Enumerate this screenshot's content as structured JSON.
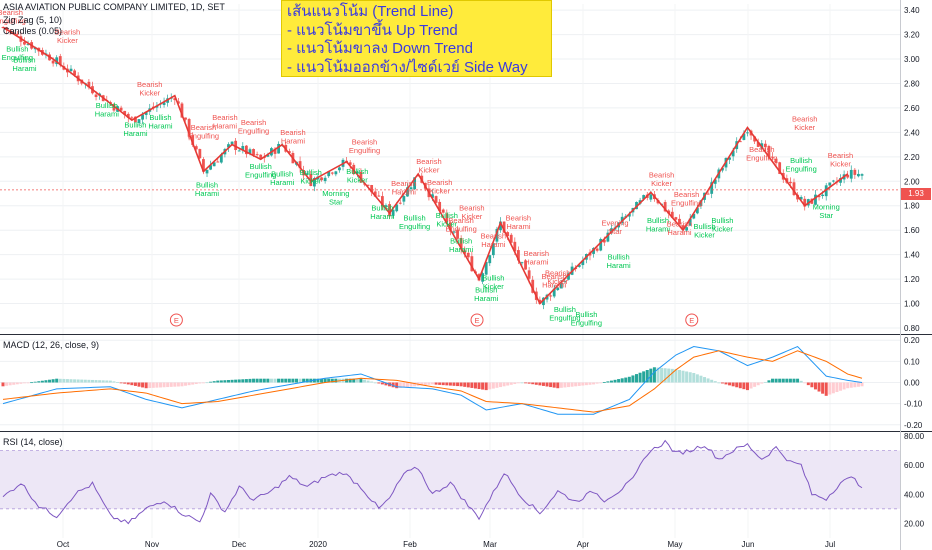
{
  "header": {
    "symbol": "ASIA AVIATION PUBLIC COMPANY LIMITED, 1D, SET",
    "zigzag": "Zig Zag (5, 10)",
    "candles": "Candles (0.05)",
    "macd": "MACD (12, 26, close, 9)",
    "rsi": "RSI (14, close)"
  },
  "note": {
    "line1": "เส้นแนวโน้ม (Trend Line)",
    "line2": "- แนวโน้มขาขึ้น Up Trend",
    "line3": "- แนวโน้มขาลง Down Trend",
    "line4": "- แนวโน้มออกข้าง/ไซด์เวย์ Side Way"
  },
  "last_price": "1.93",
  "colors": {
    "up": "#26a69a",
    "down": "#ef5350",
    "zigzag": "#e53935",
    "bearish_label": "#ef5350",
    "bullish_label": "#00c853",
    "macd_line": "#2196f3",
    "signal_line": "#ff6d00",
    "rsi_line": "#7e57c2",
    "rsi_band": "#ede7f6"
  },
  "chart_data": [
    {
      "type": "candlestick",
      "title": "ASIA AVIATION PUBLIC COMPANY LIMITED, 1D, SET",
      "x_ticks": [
        "Oct",
        "Nov",
        "Dec",
        "2020",
        "Feb",
        "Mar",
        "Apr",
        "May",
        "Jun",
        "Jul"
      ],
      "y_ticks": [
        "3.40",
        "3.20",
        "3.00",
        "2.80",
        "2.60",
        "2.40",
        "2.20",
        "2.00",
        "1.80",
        "1.60",
        "1.40",
        "1.20",
        "1.00",
        "0.80"
      ],
      "ylim": [
        0.8,
        3.45
      ],
      "zigzag": [
        {
          "i": 0,
          "price": 3.26
        },
        {
          "i": 14,
          "price": 3.0
        },
        {
          "i": 36,
          "price": 2.5
        },
        {
          "i": 48,
          "price": 2.7
        },
        {
          "i": 56,
          "price": 2.08
        },
        {
          "i": 64,
          "price": 2.3
        },
        {
          "i": 72,
          "price": 2.18
        },
        {
          "i": 78,
          "price": 2.3
        },
        {
          "i": 86,
          "price": 2.0
        },
        {
          "i": 96,
          "price": 2.16
        },
        {
          "i": 108,
          "price": 1.74
        },
        {
          "i": 116,
          "price": 2.06
        },
        {
          "i": 133,
          "price": 1.2
        },
        {
          "i": 139,
          "price": 1.66
        },
        {
          "i": 150,
          "price": 1.0
        },
        {
          "i": 181,
          "price": 1.91
        },
        {
          "i": 190,
          "price": 1.6
        },
        {
          "i": 208,
          "price": 2.44
        },
        {
          "i": 224,
          "price": 1.8
        },
        {
          "i": 236,
          "price": 2.06
        }
      ],
      "pattern_labels": [
        {
          "text": "Bearish Engulfing",
          "i": 2,
          "price": 3.36,
          "kind": "bearish"
        },
        {
          "text": "Bullish Engulfing",
          "i": 4,
          "price": 3.06,
          "kind": "bullish"
        },
        {
          "text": "Bullish Harami",
          "i": 6,
          "price": 2.97,
          "kind": "bullish"
        },
        {
          "text": "Bearish Kicker",
          "i": 18,
          "price": 3.2,
          "kind": "bearish"
        },
        {
          "text": "Bullish Harami",
          "i": 29,
          "price": 2.6,
          "kind": "bullish"
        },
        {
          "text": "Bullish Harami",
          "i": 37,
          "price": 2.44,
          "kind": "bullish"
        },
        {
          "text": "Bearish Kicker",
          "i": 41,
          "price": 2.77,
          "kind": "bearish"
        },
        {
          "text": "Bullish Harami",
          "i": 44,
          "price": 2.5,
          "kind": "bullish"
        },
        {
          "text": "Bearish Engulfing",
          "i": 56,
          "price": 2.42,
          "kind": "bearish"
        },
        {
          "text": "Bearish Harami",
          "i": 62,
          "price": 2.5,
          "kind": "bearish"
        },
        {
          "text": "Bearish Engulfing",
          "i": 70,
          "price": 2.46,
          "kind": "bearish"
        },
        {
          "text": "Bullish Harami",
          "i": 57,
          "price": 1.95,
          "kind": "bullish"
        },
        {
          "text": "Bullish Engulfing",
          "i": 72,
          "price": 2.1,
          "kind": "bullish"
        },
        {
          "text": "Bearish Harami",
          "i": 81,
          "price": 2.38,
          "kind": "bearish"
        },
        {
          "text": "Bullish Harami",
          "i": 78,
          "price": 2.04,
          "kind": "bullish"
        },
        {
          "text": "Bullish Kicker",
          "i": 86,
          "price": 2.05,
          "kind": "bullish"
        },
        {
          "text": "Bearish Engulfing",
          "i": 101,
          "price": 2.3,
          "kind": "bearish"
        },
        {
          "text": "Bullish Kicker",
          "i": 99,
          "price": 2.06,
          "kind": "bullish"
        },
        {
          "text": "Morning Star",
          "i": 93,
          "price": 1.88,
          "kind": "bullish"
        },
        {
          "text": "Bearish Harami",
          "i": 112,
          "price": 1.96,
          "kind": "bearish"
        },
        {
          "text": "Bearish Kicker",
          "i": 119,
          "price": 2.14,
          "kind": "bearish"
        },
        {
          "text": "Bullish Harami",
          "i": 106,
          "price": 1.76,
          "kind": "bullish"
        },
        {
          "text": "Bullish Engulfing",
          "i": 115,
          "price": 1.68,
          "kind": "bullish"
        },
        {
          "text": "Bearish Kicker",
          "i": 122,
          "price": 1.97,
          "kind": "bearish"
        },
        {
          "text": "Bullish Kicker",
          "i": 124,
          "price": 1.7,
          "kind": "bullish"
        },
        {
          "text": "Bearish Kicker",
          "i": 131,
          "price": 1.76,
          "kind": "bearish"
        },
        {
          "text": "Bearish Engulfing",
          "i": 128,
          "price": 1.66,
          "kind": "bearish"
        },
        {
          "text": "Bullish Harami",
          "i": 128,
          "price": 1.49,
          "kind": "bullish"
        },
        {
          "text": "Bearish Harami",
          "i": 137,
          "price": 1.53,
          "kind": "bearish"
        },
        {
          "text": "Bearish Harami",
          "i": 144,
          "price": 1.68,
          "kind": "bearish"
        },
        {
          "text": "Bearish Harami",
          "i": 149,
          "price": 1.39,
          "kind": "bearish"
        },
        {
          "text": "Bullish Kicker",
          "i": 137,
          "price": 1.19,
          "kind": "bullish"
        },
        {
          "text": "Bullish Harami",
          "i": 135,
          "price": 1.09,
          "kind": "bullish"
        },
        {
          "text": "Bearish Kicker",
          "i": 155,
          "price": 1.23,
          "kind": "bearish"
        },
        {
          "text": "Bearish Harami",
          "i": 154,
          "price": 1.2,
          "kind": "bearish"
        },
        {
          "text": "Bullish Engulfing",
          "i": 157,
          "price": 0.93,
          "kind": "bullish"
        },
        {
          "text": "Bullish Engulfing",
          "i": 163,
          "price": 0.89,
          "kind": "bullish"
        },
        {
          "text": "Evening Star",
          "i": 171,
          "price": 1.64,
          "kind": "bearish"
        },
        {
          "text": "Bullish Harami",
          "i": 172,
          "price": 1.36,
          "kind": "bullish"
        },
        {
          "text": "Bearish Kicker",
          "i": 184,
          "price": 2.03,
          "kind": "bearish"
        },
        {
          "text": "Bullish Harami",
          "i": 183,
          "price": 1.66,
          "kind": "bullish"
        },
        {
          "text": "Bearish Engulfing",
          "i": 191,
          "price": 1.87,
          "kind": "bearish"
        },
        {
          "text": "Bearish Harami",
          "i": 189,
          "price": 1.63,
          "kind": "bearish"
        },
        {
          "text": "Bullish Kicker",
          "i": 196,
          "price": 1.61,
          "kind": "bullish"
        },
        {
          "text": "Bullish Kicker",
          "i": 201,
          "price": 1.66,
          "kind": "bullish"
        },
        {
          "text": "Bearish Engulfing",
          "i": 212,
          "price": 2.24,
          "kind": "bearish"
        },
        {
          "text": "Bearish Kicker",
          "i": 224,
          "price": 2.49,
          "kind": "bearish"
        },
        {
          "text": "Bullish Engulfing",
          "i": 223,
          "price": 2.15,
          "kind": "bullish"
        },
        {
          "text": "Bearish Kicker",
          "i": 234,
          "price": 2.19,
          "kind": "bearish"
        },
        {
          "text": "Morning Star",
          "i": 230,
          "price": 1.77,
          "kind": "bullish"
        }
      ],
      "events": [
        {
          "i": 49
        },
        {
          "i": 133
        },
        {
          "i": 193
        }
      ],
      "event_label": "E"
    },
    {
      "type": "line",
      "title": "MACD (12, 26, close, 9)",
      "y_ticks": [
        "0.20",
        "0.10",
        "0.00",
        "-0.10",
        "-0.20"
      ],
      "ylim": [
        -0.22,
        0.22
      ],
      "series": [
        "MACD",
        "Signal",
        "Histogram"
      ],
      "macd_keypoints": [
        [
          0,
          -0.1
        ],
        [
          15,
          -0.03
        ],
        [
          30,
          -0.02
        ],
        [
          40,
          -0.08
        ],
        [
          50,
          -0.12
        ],
        [
          60,
          -0.08
        ],
        [
          70,
          -0.04
        ],
        [
          80,
          -0.01
        ],
        [
          90,
          0.02
        ],
        [
          100,
          0.04
        ],
        [
          110,
          -0.02
        ],
        [
          120,
          -0.03
        ],
        [
          128,
          -0.06
        ],
        [
          135,
          -0.13
        ],
        [
          145,
          -0.1
        ],
        [
          155,
          -0.15
        ],
        [
          165,
          -0.15
        ],
        [
          175,
          -0.08
        ],
        [
          182,
          0.05
        ],
        [
          188,
          0.13
        ],
        [
          193,
          0.17
        ],
        [
          200,
          0.15
        ],
        [
          208,
          0.08
        ],
        [
          215,
          0.12
        ],
        [
          222,
          0.17
        ],
        [
          230,
          0.03
        ],
        [
          236,
          0.01
        ],
        [
          240,
          0.0
        ]
      ],
      "signal_keypoints": [
        [
          0,
          -0.08
        ],
        [
          15,
          -0.05
        ],
        [
          30,
          -0.03
        ],
        [
          40,
          -0.05
        ],
        [
          50,
          -0.1
        ],
        [
          60,
          -0.09
        ],
        [
          70,
          -0.06
        ],
        [
          80,
          -0.03
        ],
        [
          90,
          0.0
        ],
        [
          100,
          0.02
        ],
        [
          110,
          0.01
        ],
        [
          120,
          -0.02
        ],
        [
          128,
          -0.04
        ],
        [
          135,
          -0.09
        ],
        [
          145,
          -0.1
        ],
        [
          155,
          -0.12
        ],
        [
          165,
          -0.14
        ],
        [
          175,
          -0.11
        ],
        [
          182,
          -0.03
        ],
        [
          188,
          0.06
        ],
        [
          193,
          0.12
        ],
        [
          200,
          0.15
        ],
        [
          208,
          0.12
        ],
        [
          215,
          0.1
        ],
        [
          222,
          0.15
        ],
        [
          230,
          0.1
        ],
        [
          236,
          0.04
        ],
        [
          240,
          0.02
        ]
      ]
    },
    {
      "type": "line",
      "title": "RSI (14, close)",
      "y_ticks": [
        "80.00",
        "60.00",
        "40.00",
        "20.00"
      ],
      "ylim": [
        10,
        82
      ],
      "band": [
        30,
        70
      ],
      "keypoints": [
        [
          0,
          38
        ],
        [
          5,
          48
        ],
        [
          10,
          32
        ],
        [
          15,
          25
        ],
        [
          20,
          40
        ],
        [
          25,
          47
        ],
        [
          30,
          25
        ],
        [
          35,
          20
        ],
        [
          40,
          30
        ],
        [
          45,
          36
        ],
        [
          50,
          27
        ],
        [
          55,
          21
        ],
        [
          58,
          40
        ],
        [
          62,
          28
        ],
        [
          66,
          45
        ],
        [
          70,
          36
        ],
        [
          75,
          42
        ],
        [
          80,
          52
        ],
        [
          85,
          45
        ],
        [
          90,
          52
        ],
        [
          95,
          55
        ],
        [
          100,
          45
        ],
        [
          105,
          30
        ],
        [
          108,
          37
        ],
        [
          112,
          54
        ],
        [
          116,
          58
        ],
        [
          120,
          40
        ],
        [
          125,
          48
        ],
        [
          130,
          32
        ],
        [
          133,
          24
        ],
        [
          137,
          41
        ],
        [
          140,
          55
        ],
        [
          145,
          38
        ],
        [
          150,
          27
        ],
        [
          155,
          42
        ],
        [
          160,
          35
        ],
        [
          165,
          42
        ],
        [
          168,
          36
        ],
        [
          172,
          42
        ],
        [
          176,
          50
        ],
        [
          180,
          68
        ],
        [
          185,
          76
        ],
        [
          188,
          68
        ],
        [
          192,
          70
        ],
        [
          196,
          74
        ],
        [
          200,
          64
        ],
        [
          204,
          70
        ],
        [
          208,
          74
        ],
        [
          212,
          64
        ],
        [
          216,
          72
        ],
        [
          220,
          62
        ],
        [
          223,
          60
        ],
        [
          226,
          40
        ],
        [
          230,
          37
        ],
        [
          234,
          48
        ],
        [
          238,
          52
        ],
        [
          240,
          43
        ]
      ]
    }
  ]
}
